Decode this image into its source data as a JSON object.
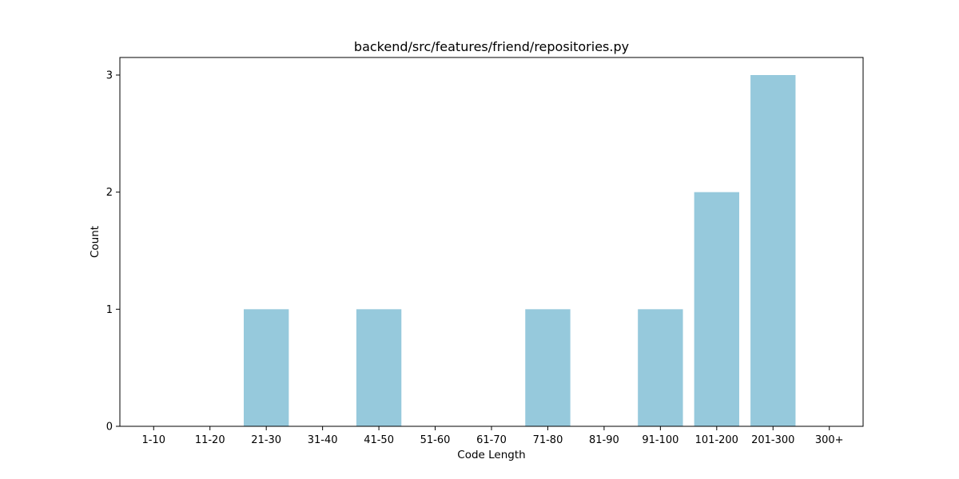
{
  "chart_data": {
    "type": "bar",
    "title": "backend/src/features/friend/repositories.py",
    "xlabel": "Code Length",
    "ylabel": "Count",
    "categories": [
      "1-10",
      "11-20",
      "21-30",
      "31-40",
      "41-50",
      "51-60",
      "61-70",
      "71-80",
      "81-90",
      "91-100",
      "101-200",
      "201-300",
      "300+"
    ],
    "values": [
      0,
      0,
      1,
      0,
      1,
      0,
      0,
      1,
      0,
      1,
      2,
      3,
      0
    ],
    "yticks": [
      0,
      1,
      2,
      3
    ],
    "ylim": [
      0,
      3.15
    ],
    "grid": false,
    "legend": "none",
    "colors": {
      "bar": "#96c9dc",
      "axis": "#000000",
      "text": "#000000"
    }
  }
}
